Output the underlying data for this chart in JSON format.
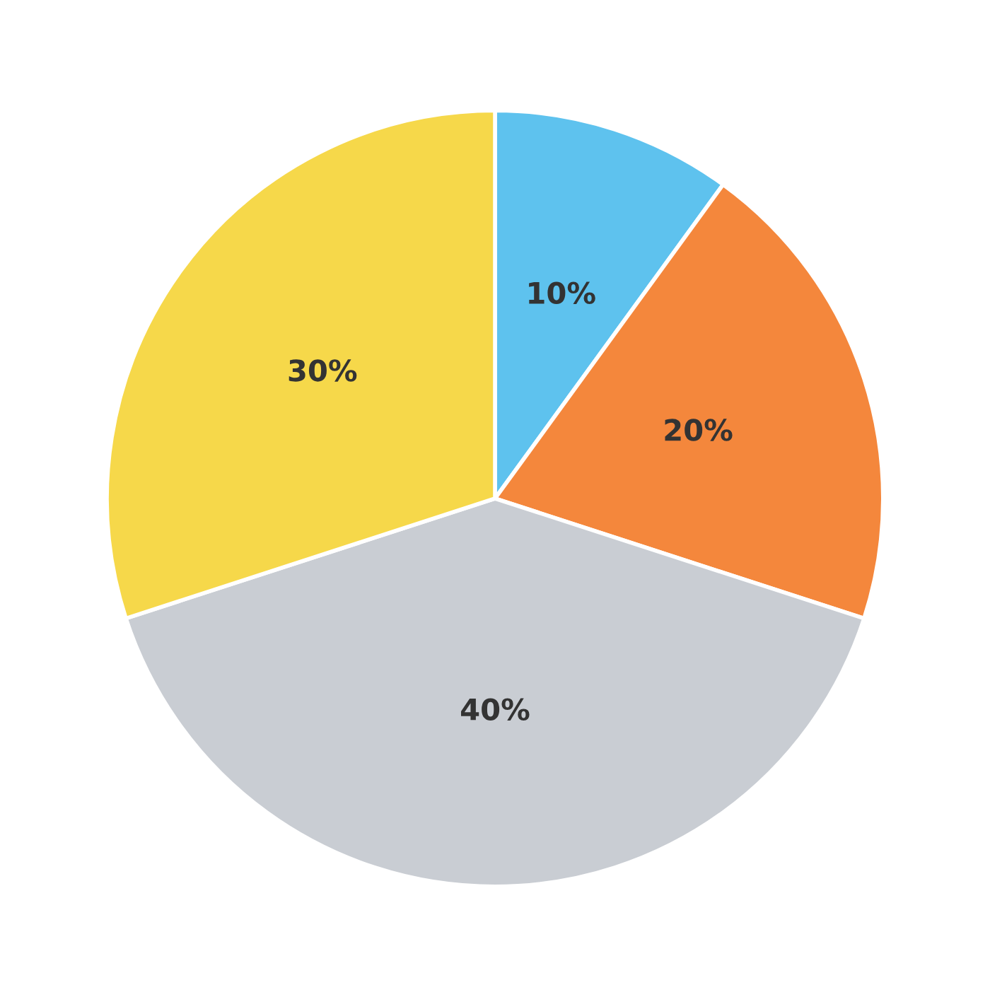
{
  "chart_data": {
    "type": "pie",
    "categories": [
      null,
      null,
      null,
      null
    ],
    "values": [
      10,
      20,
      40,
      30
    ],
    "colors": [
      "#5ec2ee",
      "#f4873c",
      "#c9cdd3",
      "#f6d84a"
    ],
    "value_labels": [
      "10%",
      "20%",
      "40%",
      "30%"
    ]
  }
}
